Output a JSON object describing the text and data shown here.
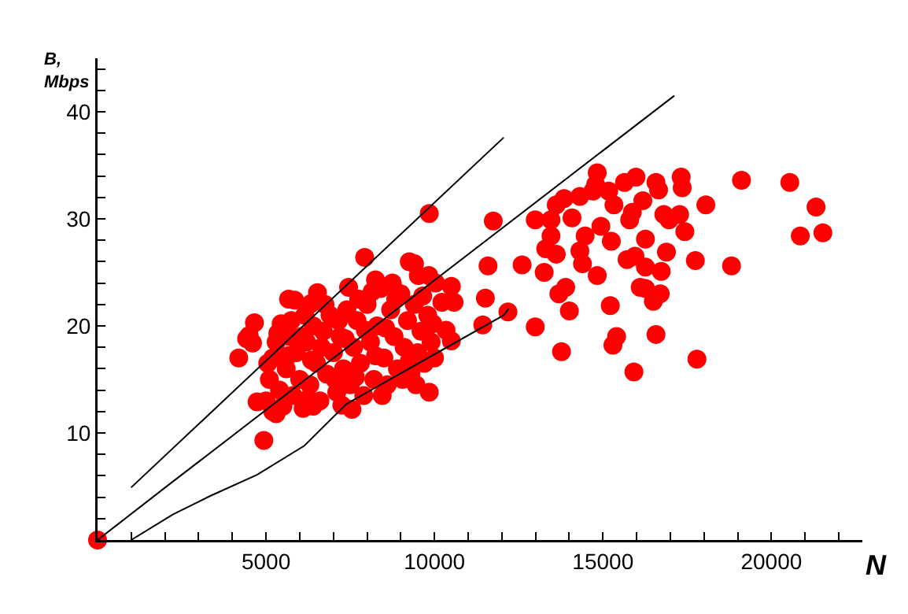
{
  "chart_data": {
    "type": "scatter",
    "xlabel": "N",
    "ylabel": "B,\nMbps",
    "xlim": [
      0,
      22700
    ],
    "ylim": [
      0,
      45
    ],
    "xticks": [
      {
        "value": 1000,
        "label": null
      },
      {
        "value": 2000,
        "label": null
      },
      {
        "value": 3000,
        "label": null
      },
      {
        "value": 4000,
        "label": null
      },
      5000,
      {
        "value": 6000,
        "label": null
      },
      {
        "value": 7000,
        "label": null
      },
      {
        "value": 8000,
        "label": null
      },
      {
        "value": 9000,
        "label": null
      },
      10000,
      {
        "value": 11000,
        "label": null
      },
      {
        "value": 12000,
        "label": null
      },
      {
        "value": 13000,
        "label": null
      },
      {
        "value": 14000,
        "label": null
      },
      15000,
      {
        "value": 16000,
        "label": null
      },
      {
        "value": 17000,
        "label": null
      },
      {
        "value": 18000,
        "label": null
      },
      {
        "value": 19000,
        "label": null
      },
      20000,
      {
        "value": 21000,
        "label": null
      },
      {
        "value": 22000,
        "label": null
      }
    ],
    "yticks": [
      {
        "value": 2,
        "label": null
      },
      {
        "value": 4,
        "label": null
      },
      {
        "value": 6,
        "label": null
      },
      {
        "value": 8,
        "label": null
      },
      10,
      {
        "value": 12,
        "label": null
      },
      {
        "value": 14,
        "label": null
      },
      {
        "value": 16,
        "label": null
      },
      {
        "value": 18,
        "label": null
      },
      20,
      {
        "value": 22,
        "label": null
      },
      {
        "value": 24,
        "label": null
      },
      {
        "value": 26,
        "label": null
      },
      {
        "value": 28,
        "label": null
      },
      30,
      {
        "value": 32,
        "label": null
      },
      {
        "value": 34,
        "label": null
      },
      {
        "value": 36,
        "label": null
      },
      {
        "value": 38,
        "label": null
      },
      40,
      {
        "value": 42,
        "label": null
      },
      {
        "value": 44,
        "label": null
      }
    ],
    "grid": false,
    "marker": "circle",
    "series": [
      {
        "color": "#ff0000",
        "x": [
          0,
          5000,
          5100,
          5200,
          5300,
          5400,
          5500,
          5600,
          5700,
          5800,
          5900,
          6000,
          6100,
          6200,
          6300,
          6400,
          6500,
          6600,
          6700,
          6800,
          6900,
          7000,
          7100,
          7200,
          7300,
          7400,
          7500,
          7600,
          7700,
          7800,
          7900,
          8000,
          8100,
          8200,
          8300,
          8400,
          8500,
          8600,
          8700,
          8800,
          8900,
          9000,
          9100,
          9200,
          9300,
          9400,
          9500,
          9600,
          9700,
          9800,
          9900,
          5200,
          5050,
          5350,
          5650,
          6050,
          6350,
          6650,
          6250,
          7050,
          7350,
          7650,
          7950,
          8250,
          8550,
          8850,
          8150,
          7750,
          7150,
          6750,
          6150,
          5750,
          8450,
          7250,
          9250,
          9650,
          10000,
          9950,
          5450,
          5850,
          7450,
          8250,
          8750,
          5300,
          6400,
          7550,
          9050,
          9450,
          4657,
          4424,
          4190,
          4935,
          4735,
          4500,
          4600,
          5670,
          6526,
          6340,
          7928,
          9252,
          9408,
          9520,
          9830,
          9844,
          10032,
          10500,
          10220,
          10580,
          10343,
          10500,
          9844,
          11589,
          11745,
          11510,
          11433,
          12180,
          12600,
          12991,
          13256,
          13770,
          14003,
          13692,
          13894,
          12991,
          13614,
          13847,
          13458,
          13302,
          13614,
          14081,
          14315,
          14705,
          14830,
          14783,
          15171,
          15327,
          15639,
          15981,
          16574,
          16651,
          17322,
          17353,
          18054,
          19113,
          20547,
          21325,
          20858,
          21528,
          18816,
          17743,
          17790,
          16574,
          15919,
          15296,
          15405,
          15218,
          14830,
          14393,
          14315,
          14471,
          14939,
          15249,
          15794,
          15872,
          16184,
          16262,
          15716,
          15950,
          16262,
          16730,
          16106,
          16262,
          16496,
          16699,
          16885,
          16963,
          17275,
          17431,
          16807,
          13458
        ],
        "values": [
          0,
          13,
          15,
          17,
          18.5,
          14,
          12.5,
          16,
          19,
          13.5,
          17.5,
          15,
          12.3,
          18.5,
          14.5,
          20,
          16.5,
          13,
          19.5,
          15.5,
          21,
          17.5,
          13.8,
          19,
          16,
          21.5,
          14.5,
          18,
          20.5,
          16.5,
          13.5,
          22,
          18.5,
          15,
          20,
          23.5,
          17,
          14.5,
          21.5,
          19,
          16,
          23,
          18,
          20.5,
          15.5,
          22,
          17.5,
          19.5,
          16.5,
          21,
          18.5,
          12,
          16.5,
          19.3,
          17.2,
          19,
          16.8,
          18,
          13.2,
          15,
          18.8,
          15.2,
          19.6,
          17.2,
          19.8,
          22.5,
          23.2,
          22.5,
          20.5,
          22,
          21,
          20.5,
          13.5,
          12.6,
          16.7,
          22.8,
          17,
          20.2,
          20.2,
          22.4,
          23.6,
          24.3,
          24,
          11.8,
          12.5,
          12.2,
          15,
          14.5,
          20.3,
          18.8,
          17,
          9.3,
          12.9,
          19.1,
          18.4,
          22.5,
          23.1,
          22.1,
          26.4,
          26,
          25.8,
          24.7,
          24.7,
          30.5,
          24,
          23.7,
          22.2,
          22.2,
          19.6,
          18.6,
          13.8,
          25.6,
          29.8,
          22.6,
          20.1,
          21.3,
          25.7,
          19.9,
          25,
          17.6,
          21.4,
          23,
          23.6,
          29.9,
          31.3,
          31.9,
          28.4,
          27.2,
          26.7,
          30.1,
          32.1,
          32.6,
          34.3,
          33.2,
          32.6,
          31.3,
          33.4,
          33.9,
          33.4,
          32.7,
          33.9,
          32.9,
          31.3,
          33.6,
          33.4,
          31.1,
          28.4,
          28.7,
          25.6,
          26.1,
          16.9,
          19.2,
          15.7,
          18.2,
          19,
          21.9,
          24.7,
          25.8,
          27,
          28.4,
          29.3,
          27.9,
          29.9,
          30.6,
          31.7,
          28.1,
          26.2,
          26.5,
          25.5,
          25.1,
          23.6,
          23.5,
          22.3,
          23,
          26.9,
          29.9,
          30.4,
          28.8,
          30.4,
          29.9
        ]
      },
      {
        "type": "line",
        "color": "#000000",
        "marker": "none",
        "x": [
          995,
          12056
        ],
        "values": [
          4.9,
          37.6
        ]
      },
      {
        "type": "line",
        "color": "#000000",
        "marker": "none",
        "x": [
          0,
          2088,
          17117
        ],
        "values": [
          0,
          5.1,
          41.5
        ]
      },
      {
        "type": "line",
        "color": "#000000",
        "marker": "none",
        "x": [
          995,
          2243,
          3333,
          4734,
          6137,
          7383,
          12056,
          12200
        ],
        "values": [
          0,
          2.4,
          4.1,
          6.1,
          8.8,
          12.7,
          21,
          21.6
        ]
      }
    ]
  }
}
